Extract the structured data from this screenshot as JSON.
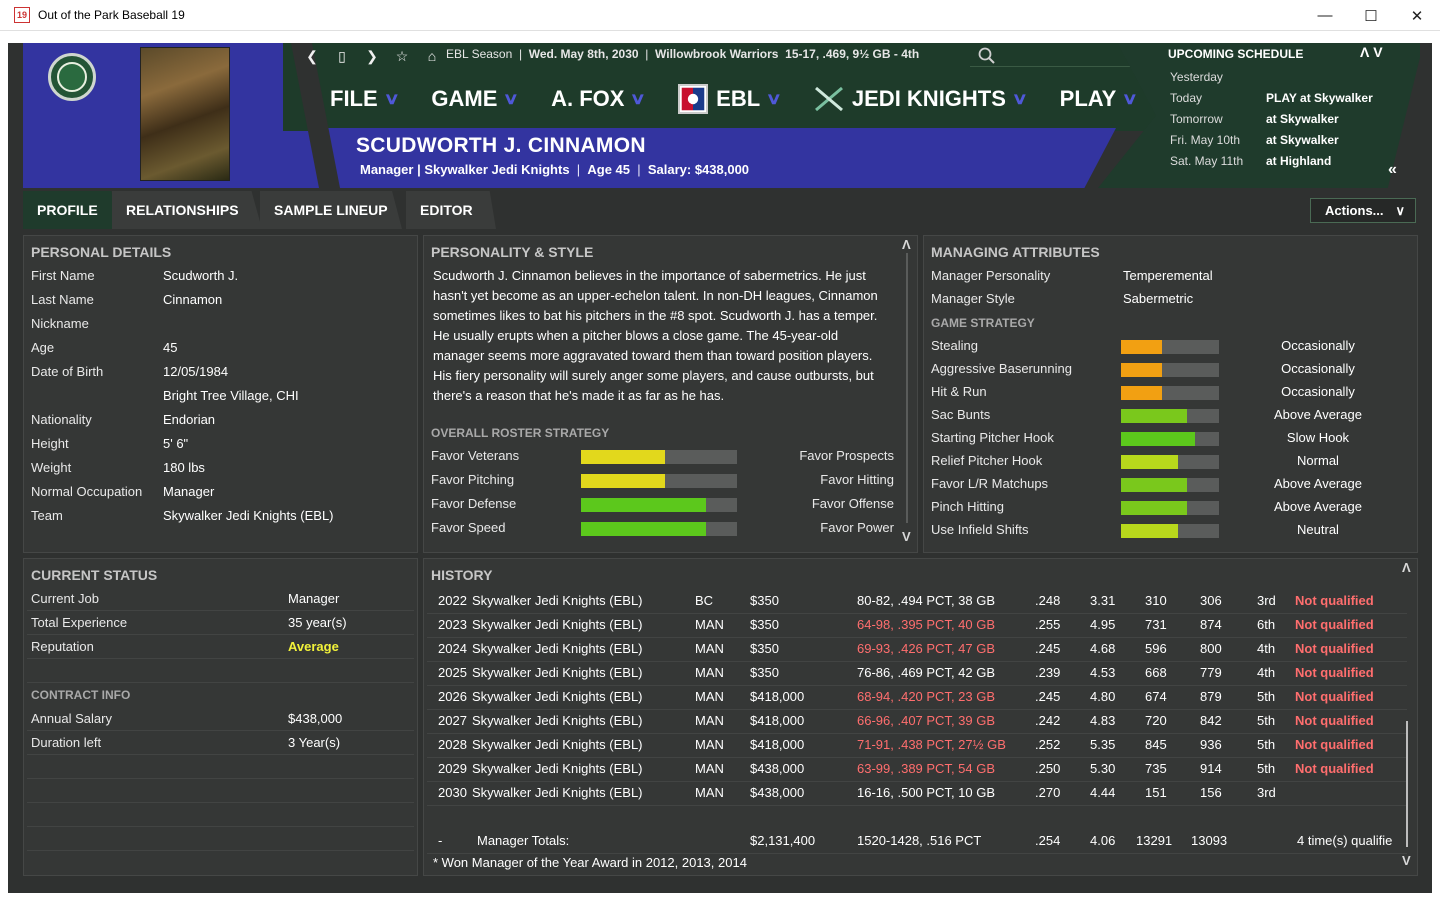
{
  "window": {
    "title": "Out of the Park Baseball 19",
    "icon_text": "19"
  },
  "nav": {
    "back": "❮",
    "home_box": "▯",
    "forward": "❯",
    "star": "☆",
    "home": "⌂"
  },
  "season": {
    "league": "EBL Season",
    "date": "Wed. May 8th, 2030",
    "team": "Willowbrook Warriors",
    "record": "15-17, .469, 9½ GB - 4th"
  },
  "menu": [
    {
      "label": "FILE"
    },
    {
      "label": "GAME"
    },
    {
      "label": "A. FOX"
    },
    {
      "label": "EBL"
    },
    {
      "label": "JEDI KNIGHTS"
    },
    {
      "label": "PLAY"
    }
  ],
  "manager": {
    "name": "SCUDWORTH J. CINNAMON",
    "role": "Manager | Skywalker Jedi Knights",
    "age": "Age 45",
    "salary": "Salary: $438,000"
  },
  "schedule": {
    "title": "UPCOMING SCHEDULE",
    "rows": [
      {
        "day": "Yesterday",
        "game": ""
      },
      {
        "day": "Today",
        "game": "PLAY at Skywalker"
      },
      {
        "day": "Tomorrow",
        "game": "at Skywalker"
      },
      {
        "day": "Fri. May 10th",
        "game": "at Skywalker"
      },
      {
        "day": "Sat. May 11th",
        "game": "at Highland"
      }
    ]
  },
  "tabs": [
    {
      "label": "PROFILE"
    },
    {
      "label": "RELATIONSHIPS"
    },
    {
      "label": "SAMPLE LINEUP"
    },
    {
      "label": "EDITOR"
    }
  ],
  "actions_label": "Actions...",
  "personal": {
    "title": "PERSONAL DETAILS",
    "rows": [
      {
        "label": "First Name",
        "value": "Scudworth J."
      },
      {
        "label": "Last Name",
        "value": "Cinnamon"
      },
      {
        "label": "Nickname",
        "value": ""
      },
      {
        "label": "Age",
        "value": "45"
      },
      {
        "label": "Date of Birth",
        "value": "12/05/1984"
      },
      {
        "label": "",
        "value": "Bright Tree Village, CHI"
      },
      {
        "label": "Nationality",
        "value": "Endorian"
      },
      {
        "label": "Height",
        "value": "5' 6\""
      },
      {
        "label": "Weight",
        "value": "180 lbs"
      },
      {
        "label": "Normal Occupation",
        "value": "Manager"
      },
      {
        "label": "Team",
        "value": "Skywalker Jedi Knights (EBL)"
      }
    ]
  },
  "personality": {
    "title": "PERSONALITY & STYLE",
    "text": "Scudworth J. Cinnamon believes in the importance of sabermetrics. He just hasn't yet become as an upper-echelon talent. In non-DH leagues, Cinnamon sometimes likes to bat his pitchers in the #8 spot. Scudworth J. has a temper.  He usually erupts when a pitcher blows a close game. The 45-year-old manager seems more aggravated toward them than toward position players. His fiery personality will surely anger some players, and cause outbursts, but there's a reason that he's made it as far as he has.",
    "strategy_title": "OVERALL ROSTER STRATEGY",
    "strategy": [
      {
        "left": "Favor Veterans",
        "right": "Favor Prospects",
        "level": 0.54,
        "color": "#e2d81c"
      },
      {
        "left": "Favor Pitching",
        "right": "Favor Hitting",
        "level": 0.54,
        "color": "#e2d81c"
      },
      {
        "left": "Favor Defense",
        "right": "Favor Offense",
        "level": 0.8,
        "color": "#5cc81c"
      },
      {
        "left": "Favor Speed",
        "right": "Favor Power",
        "level": 0.8,
        "color": "#5cc81c"
      }
    ]
  },
  "managing": {
    "title": "MANAGING ATTRIBUTES",
    "personality_label": "Manager Personality",
    "personality_value": "Temperemental",
    "style_label": "Manager Style",
    "style_value": "Sabermetric",
    "strategy_title": "GAME STRATEGY",
    "rows": [
      {
        "label": "Stealing",
        "value": "Occasionally",
        "level": 0.42,
        "color": "#f2a012"
      },
      {
        "label": "Aggressive Baserunning",
        "value": "Occasionally",
        "level": 0.42,
        "color": "#f2a012"
      },
      {
        "label": "Hit & Run",
        "value": "Occasionally",
        "level": 0.42,
        "color": "#f2a012"
      },
      {
        "label": "Sac Bunts",
        "value": "Above Average",
        "level": 0.67,
        "color": "#7ac81c"
      },
      {
        "label": "Starting Pitcher Hook",
        "value": "Slow Hook",
        "level": 0.76,
        "color": "#5cc81c"
      },
      {
        "label": "Relief Pitcher Hook",
        "value": "Normal",
        "level": 0.58,
        "color": "#b8d81c"
      },
      {
        "label": "Favor L/R Matchups",
        "value": "Above Average",
        "level": 0.67,
        "color": "#7ac81c"
      },
      {
        "label": "Pinch Hitting",
        "value": "Above Average",
        "level": 0.67,
        "color": "#7ac81c"
      },
      {
        "label": "Use Infield Shifts",
        "value": "Neutral",
        "level": 0.58,
        "color": "#b8d81c"
      }
    ]
  },
  "status": {
    "title": "CURRENT STATUS",
    "rows": [
      {
        "label": "Current Job",
        "value": "Manager"
      },
      {
        "label": "Total Experience",
        "value": "35 year(s)"
      },
      {
        "label": "Reputation",
        "value": "Average"
      }
    ],
    "contract_title": "CONTRACT INFO",
    "contract": [
      {
        "label": "Annual Salary",
        "value": "$438,000"
      },
      {
        "label": "Duration left",
        "value": "3 Year(s)"
      }
    ]
  },
  "history": {
    "title": "HISTORY",
    "rows": [
      {
        "year": "2022",
        "team": "Skywalker Jedi Knights (EBL)",
        "role": "BC",
        "salary": "$350",
        "record": "80-82, .494 PCT, 38 GB",
        "red": false,
        "avg": ".248",
        "era": "3.31",
        "rs": "310",
        "ra": "306",
        "pos": "3rd",
        "award": "Not qualified"
      },
      {
        "year": "2023",
        "team": "Skywalker Jedi Knights (EBL)",
        "role": "MAN",
        "salary": "$350",
        "record": "64-98, .395 PCT, 40 GB",
        "red": true,
        "avg": ".255",
        "era": "4.95",
        "rs": "731",
        "ra": "874",
        "pos": "6th",
        "award": "Not qualified"
      },
      {
        "year": "2024",
        "team": "Skywalker Jedi Knights (EBL)",
        "role": "MAN",
        "salary": "$350",
        "record": "69-93, .426 PCT, 47 GB",
        "red": true,
        "avg": ".245",
        "era": "4.68",
        "rs": "596",
        "ra": "800",
        "pos": "4th",
        "award": "Not qualified"
      },
      {
        "year": "2025",
        "team": "Skywalker Jedi Knights (EBL)",
        "role": "MAN",
        "salary": "$350",
        "record": "76-86, .469 PCT, 42 GB",
        "red": false,
        "avg": ".239",
        "era": "4.53",
        "rs": "668",
        "ra": "779",
        "pos": "4th",
        "award": "Not qualified"
      },
      {
        "year": "2026",
        "team": "Skywalker Jedi Knights (EBL)",
        "role": "MAN",
        "salary": "$418,000",
        "record": "68-94, .420 PCT, 23 GB",
        "red": true,
        "avg": ".245",
        "era": "4.80",
        "rs": "674",
        "ra": "879",
        "pos": "5th",
        "award": "Not qualified"
      },
      {
        "year": "2027",
        "team": "Skywalker Jedi Knights (EBL)",
        "role": "MAN",
        "salary": "$418,000",
        "record": "66-96, .407 PCT, 39 GB",
        "red": true,
        "avg": ".242",
        "era": "4.83",
        "rs": "720",
        "ra": "842",
        "pos": "5th",
        "award": "Not qualified"
      },
      {
        "year": "2028",
        "team": "Skywalker Jedi Knights (EBL)",
        "role": "MAN",
        "salary": "$418,000",
        "record": "71-91, .438 PCT, 27½ GB",
        "red": true,
        "avg": ".252",
        "era": "5.35",
        "rs": "845",
        "ra": "936",
        "pos": "5th",
        "award": "Not qualified"
      },
      {
        "year": "2029",
        "team": "Skywalker Jedi Knights (EBL)",
        "role": "MAN",
        "salary": "$438,000",
        "record": "63-99, .389 PCT, 54 GB",
        "red": true,
        "avg": ".250",
        "era": "5.30",
        "rs": "735",
        "ra": "914",
        "pos": "5th",
        "award": "Not qualified"
      },
      {
        "year": "2030",
        "team": "Skywalker Jedi Knights (EBL)",
        "role": "MAN",
        "salary": "$438,000",
        "record": "16-16, .500 PCT, 10 GB",
        "red": false,
        "avg": ".270",
        "era": "4.44",
        "rs": "151",
        "ra": "156",
        "pos": "3rd",
        "award": ""
      }
    ],
    "totals": {
      "dash": "-",
      "label": "Manager Totals:",
      "salary": "$2,131,400",
      "record": "1520-1428, .516 PCT",
      "avg": ".254",
      "era": "4.06",
      "rs": "13291",
      "ra": "13093",
      "award": "4 time(s) qualifie"
    },
    "footnote": "* Won Manager of the Year Award in 2012, 2013, 2014"
  }
}
